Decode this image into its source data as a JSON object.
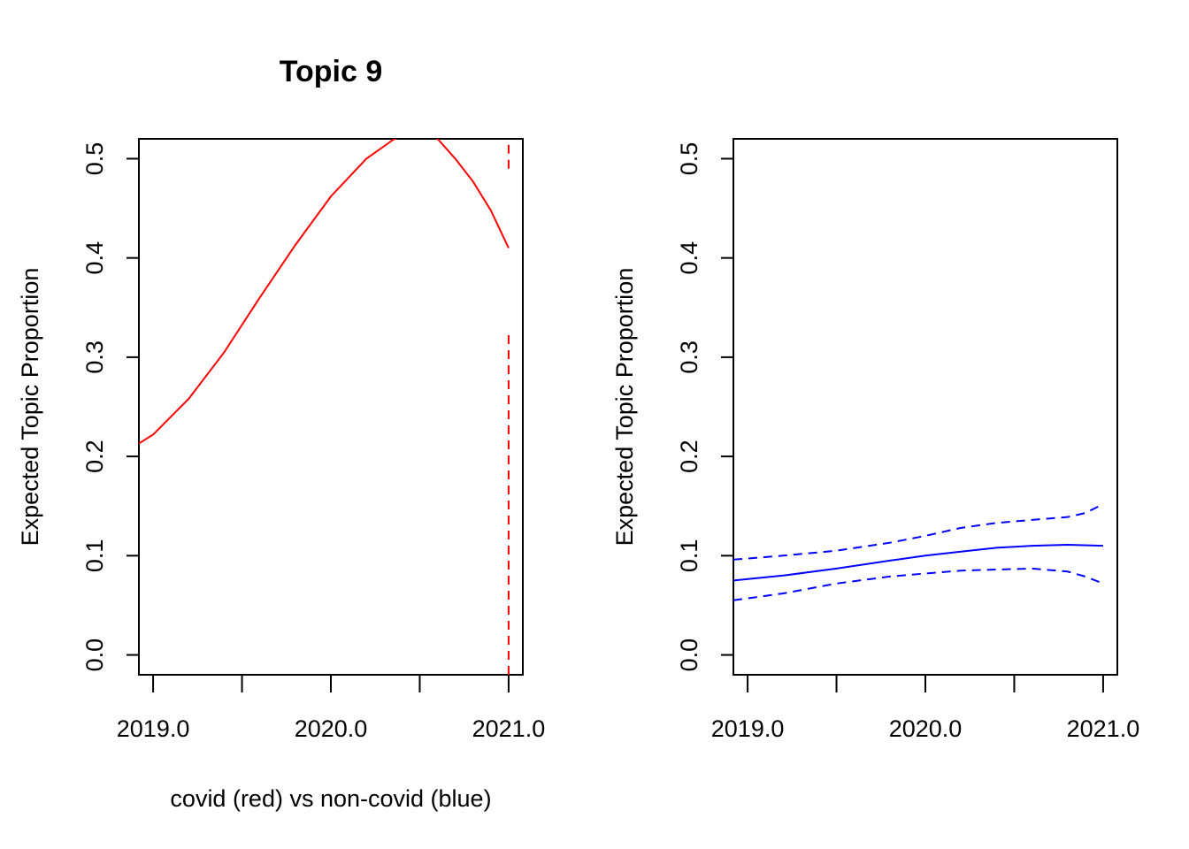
{
  "chart_data": [
    {
      "type": "line",
      "title": "Topic 9",
      "xlabel": "covid (red) vs non-covid (blue)",
      "ylabel": "Expected Topic Proportion",
      "xlim": [
        2018.92,
        2021.08
      ],
      "ylim": [
        -0.02,
        0.52
      ],
      "xticks": [
        2019.0,
        2019.5,
        2020.0,
        2020.5,
        2021.0
      ],
      "xtick_labels": [
        "2019.0",
        "",
        "2020.0",
        "",
        "2021.0"
      ],
      "yticks": [
        0.0,
        0.1,
        0.2,
        0.3,
        0.4,
        0.5
      ],
      "ytick_labels": [
        "0.0",
        "0.1",
        "0.2",
        "0.3",
        "0.4",
        "0.5"
      ],
      "color": "#ff0000",
      "series": [
        {
          "style": "solid",
          "x": [
            2018.92,
            2019.0,
            2019.2,
            2019.4,
            2019.6,
            2019.8,
            2020.0,
            2020.2,
            2020.35,
            2020.5,
            2020.6,
            2020.7,
            2020.8,
            2020.9,
            2021.0
          ],
          "y": [
            0.213,
            0.222,
            0.258,
            0.305,
            0.36,
            0.413,
            0.462,
            0.5,
            0.519,
            0.53,
            0.52,
            0.5,
            0.477,
            0.448,
            0.41
          ]
        },
        {
          "style": "dashed",
          "x": [
            2021.0,
            2021.0
          ],
          "y": [
            -0.02,
            0.325
          ]
        },
        {
          "style": "dashed",
          "x": [
            2021.0,
            2021.0
          ],
          "y": [
            0.49,
            0.52
          ]
        }
      ]
    },
    {
      "type": "line",
      "title": "",
      "xlabel": "",
      "ylabel": "Expected Topic Proportion",
      "xlim": [
        2018.92,
        2021.08
      ],
      "ylim": [
        -0.02,
        0.52
      ],
      "xticks": [
        2019.0,
        2019.5,
        2020.0,
        2020.5,
        2021.0
      ],
      "xtick_labels": [
        "2019.0",
        "",
        "2020.0",
        "",
        "2021.0"
      ],
      "yticks": [
        0.0,
        0.1,
        0.2,
        0.3,
        0.4,
        0.5
      ],
      "ytick_labels": [
        "0.0",
        "0.1",
        "0.2",
        "0.3",
        "0.4",
        "0.5"
      ],
      "color": "#0000ff",
      "series": [
        {
          "style": "solid",
          "x": [
            2018.92,
            2019.2,
            2019.5,
            2019.8,
            2020.0,
            2020.2,
            2020.4,
            2020.6,
            2020.8,
            2021.0
          ],
          "y": [
            0.075,
            0.08,
            0.087,
            0.095,
            0.1,
            0.104,
            0.108,
            0.11,
            0.111,
            0.11
          ]
        },
        {
          "style": "dashed",
          "x": [
            2018.92,
            2019.2,
            2019.5,
            2019.8,
            2020.0,
            2020.2,
            2020.4,
            2020.6,
            2020.8,
            2020.9,
            2021.0
          ],
          "y": [
            0.096,
            0.1,
            0.105,
            0.113,
            0.12,
            0.128,
            0.133,
            0.136,
            0.139,
            0.143,
            0.152
          ]
        },
        {
          "style": "dashed",
          "x": [
            2018.92,
            2019.2,
            2019.5,
            2019.8,
            2020.0,
            2020.2,
            2020.4,
            2020.6,
            2020.8,
            2020.9,
            2021.0
          ],
          "y": [
            0.055,
            0.062,
            0.072,
            0.079,
            0.082,
            0.085,
            0.086,
            0.087,
            0.084,
            0.079,
            0.072
          ]
        }
      ]
    }
  ]
}
